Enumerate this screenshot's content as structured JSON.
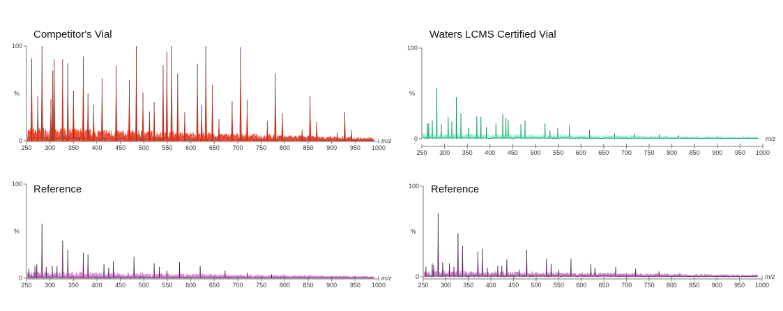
{
  "chart_data": [
    {
      "type": "line",
      "title": "Competitor's Vial",
      "xlabel": "m/z",
      "ylabel": "%",
      "xlim": [
        250,
        1000
      ],
      "ylim": [
        0,
        100
      ],
      "y_tick_labels": [
        "0",
        "100"
      ],
      "x_tick_labels": [
        "250",
        "300",
        "350",
        "400",
        "450",
        "500",
        "550",
        "600",
        "650",
        "700",
        "750",
        "800",
        "850",
        "900",
        "950",
        "1000"
      ],
      "grid": false,
      "colors": {
        "fill": "#f2391f",
        "line": "#7a3d36"
      },
      "noise_level_percent": 14,
      "peaks": [
        [
          261,
          87
        ],
        [
          274,
          47
        ],
        [
          283,
          100
        ],
        [
          302,
          44
        ],
        [
          306,
          74
        ],
        [
          309,
          86
        ],
        [
          327,
          86
        ],
        [
          338,
          82
        ],
        [
          350,
          53
        ],
        [
          371,
          89
        ],
        [
          381,
          50
        ],
        [
          393,
          38
        ],
        [
          411,
          66
        ],
        [
          441,
          79
        ],
        [
          469,
          64
        ],
        [
          484,
          100
        ],
        [
          498,
          51
        ],
        [
          512,
          31
        ],
        [
          522,
          41
        ],
        [
          541,
          80
        ],
        [
          549,
          94
        ],
        [
          559,
          100
        ],
        [
          572,
          71
        ],
        [
          587,
          30
        ],
        [
          614,
          81
        ],
        [
          623,
          38
        ],
        [
          632,
          100
        ],
        [
          646,
          59
        ],
        [
          660,
          23
        ],
        [
          688,
          42
        ],
        [
          706,
          99
        ],
        [
          720,
          43
        ],
        [
          763,
          21
        ],
        [
          780,
          71
        ],
        [
          795,
          29
        ],
        [
          837,
          12
        ],
        [
          854,
          47
        ],
        [
          868,
          20
        ],
        [
          912,
          9
        ],
        [
          928,
          30
        ],
        [
          942,
          11
        ]
      ]
    },
    {
      "type": "line",
      "title": "Waters LCMS Certified Vial",
      "xlabel": "m/z",
      "ylabel": "%",
      "xlim": [
        250,
        1000
      ],
      "ylim": [
        0,
        100
      ],
      "y_tick_labels": [
        "0",
        "100"
      ],
      "x_tick_labels": [
        "250",
        "300",
        "350",
        "400",
        "450",
        "500",
        "550",
        "600",
        "650",
        "700",
        "750",
        "800",
        "850",
        "900",
        "950",
        "1000"
      ],
      "grid": false,
      "colors": {
        "fill": "#8ff0cf",
        "line": "#17864f"
      },
      "noise_level_percent": 5,
      "peaks": [
        [
          262,
          17
        ],
        [
          265,
          17
        ],
        [
          273,
          20
        ],
        [
          283,
          56
        ],
        [
          293,
          16
        ],
        [
          308,
          24
        ],
        [
          316,
          19
        ],
        [
          326,
          46
        ],
        [
          336,
          28
        ],
        [
          352,
          12
        ],
        [
          371,
          25
        ],
        [
          380,
          24
        ],
        [
          392,
          13
        ],
        [
          413,
          17
        ],
        [
          428,
          27
        ],
        [
          435,
          23
        ],
        [
          440,
          21
        ],
        [
          468,
          16
        ],
        [
          477,
          20
        ],
        [
          521,
          17
        ],
        [
          532,
          9
        ],
        [
          549,
          12
        ],
        [
          575,
          15
        ],
        [
          619,
          10
        ],
        [
          674,
          6
        ],
        [
          718,
          6
        ],
        [
          772,
          5
        ],
        [
          815,
          4
        ]
      ]
    },
    {
      "type": "line",
      "title": "Reference",
      "xlabel": "m/z",
      "ylabel": "%",
      "xlim": [
        250,
        1000
      ],
      "ylim": [
        0,
        100
      ],
      "y_tick_labels": [
        "0",
        "100"
      ],
      "x_tick_labels": [
        "250",
        "300",
        "350",
        "400",
        "450",
        "500",
        "550",
        "600",
        "650",
        "700",
        "750",
        "800",
        "850",
        "900",
        "950",
        "1000"
      ],
      "grid": false,
      "colors": {
        "fill": "#d47bd0",
        "line": "#3a2b3c"
      },
      "noise_level_percent": 6,
      "peaks": [
        [
          255,
          10
        ],
        [
          268,
          13
        ],
        [
          272,
          15
        ],
        [
          283,
          58
        ],
        [
          292,
          12
        ],
        [
          305,
          13
        ],
        [
          315,
          13
        ],
        [
          327,
          40
        ],
        [
          338,
          30
        ],
        [
          371,
          27
        ],
        [
          381,
          25
        ],
        [
          415,
          15
        ],
        [
          425,
          11
        ],
        [
          435,
          18
        ],
        [
          479,
          23
        ],
        [
          522,
          16
        ],
        [
          533,
          12
        ],
        [
          549,
          8
        ],
        [
          576,
          17
        ],
        [
          620,
          13
        ],
        [
          673,
          8
        ],
        [
          720,
          6
        ],
        [
          772,
          4
        ]
      ]
    },
    {
      "type": "line",
      "title": "Reference",
      "xlabel": "m/z",
      "ylabel": "%",
      "xlim": [
        250,
        1000
      ],
      "ylim": [
        0,
        100
      ],
      "y_tick_labels": [
        "0",
        "100"
      ],
      "x_tick_labels": [
        "250",
        "300",
        "350",
        "400",
        "450",
        "500",
        "550",
        "600",
        "650",
        "700",
        "750",
        "800",
        "850",
        "900",
        "950",
        "1000"
      ],
      "grid": false,
      "colors": {
        "fill": "#c77ac4",
        "line": "#3a2b3c"
      },
      "noise_level_percent": 6,
      "peaks": [
        [
          256,
          11
        ],
        [
          270,
          15
        ],
        [
          273,
          13
        ],
        [
          283,
          70
        ],
        [
          293,
          16
        ],
        [
          308,
          15
        ],
        [
          318,
          11
        ],
        [
          327,
          48
        ],
        [
          337,
          34
        ],
        [
          371,
          28
        ],
        [
          381,
          31
        ],
        [
          392,
          10
        ],
        [
          415,
          12
        ],
        [
          424,
          12
        ],
        [
          435,
          19
        ],
        [
          463,
          8
        ],
        [
          479,
          30
        ],
        [
          523,
          20
        ],
        [
          533,
          14
        ],
        [
          550,
          8
        ],
        [
          577,
          20
        ],
        [
          621,
          14
        ],
        [
          630,
          10
        ],
        [
          676,
          11
        ],
        [
          720,
          9
        ],
        [
          772,
          6
        ],
        [
          818,
          4
        ]
      ]
    }
  ]
}
